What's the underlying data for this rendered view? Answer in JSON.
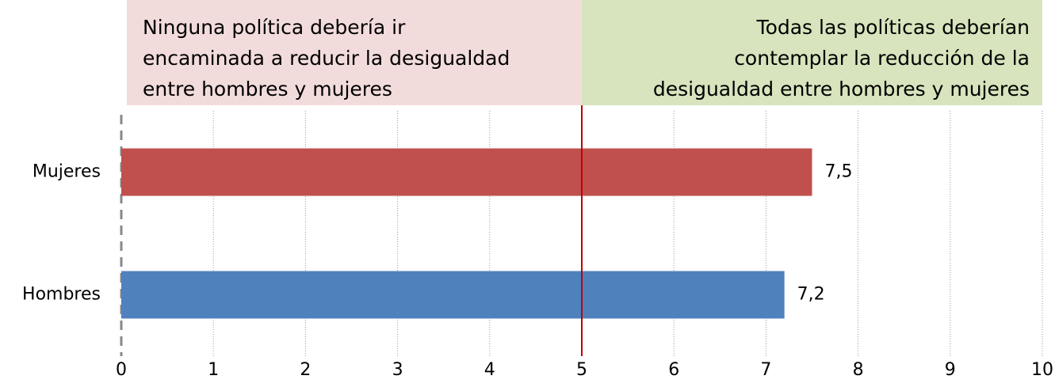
{
  "chart_data": {
    "type": "barh",
    "categories": [
      "Mujeres",
      "Hombres"
    ],
    "values": [
      7.5,
      7.2
    ],
    "value_labels": [
      "7,5",
      "7,2"
    ],
    "colors": [
      "#c0504d",
      "#4f81bd"
    ],
    "xlim": [
      0,
      10
    ],
    "xticks": [
      0,
      1,
      2,
      3,
      4,
      5,
      6,
      7,
      8,
      9,
      10
    ],
    "grid": true,
    "reference_line": {
      "value": 5,
      "color": "#c00000"
    },
    "annotations": [
      {
        "lines": [
          "Ninguna política debería ir",
          "encaminada a reducir la desigualdad",
          "entre hombres y mujeres"
        ],
        "color": "#f2dcdb",
        "align": "left"
      },
      {
        "lines": [
          "Todas las políticas deberían",
          "contemplar la reducción de la",
          "desigualdad entre hombres y mujeres"
        ],
        "color": "#d7e4bd",
        "align": "right"
      }
    ]
  }
}
